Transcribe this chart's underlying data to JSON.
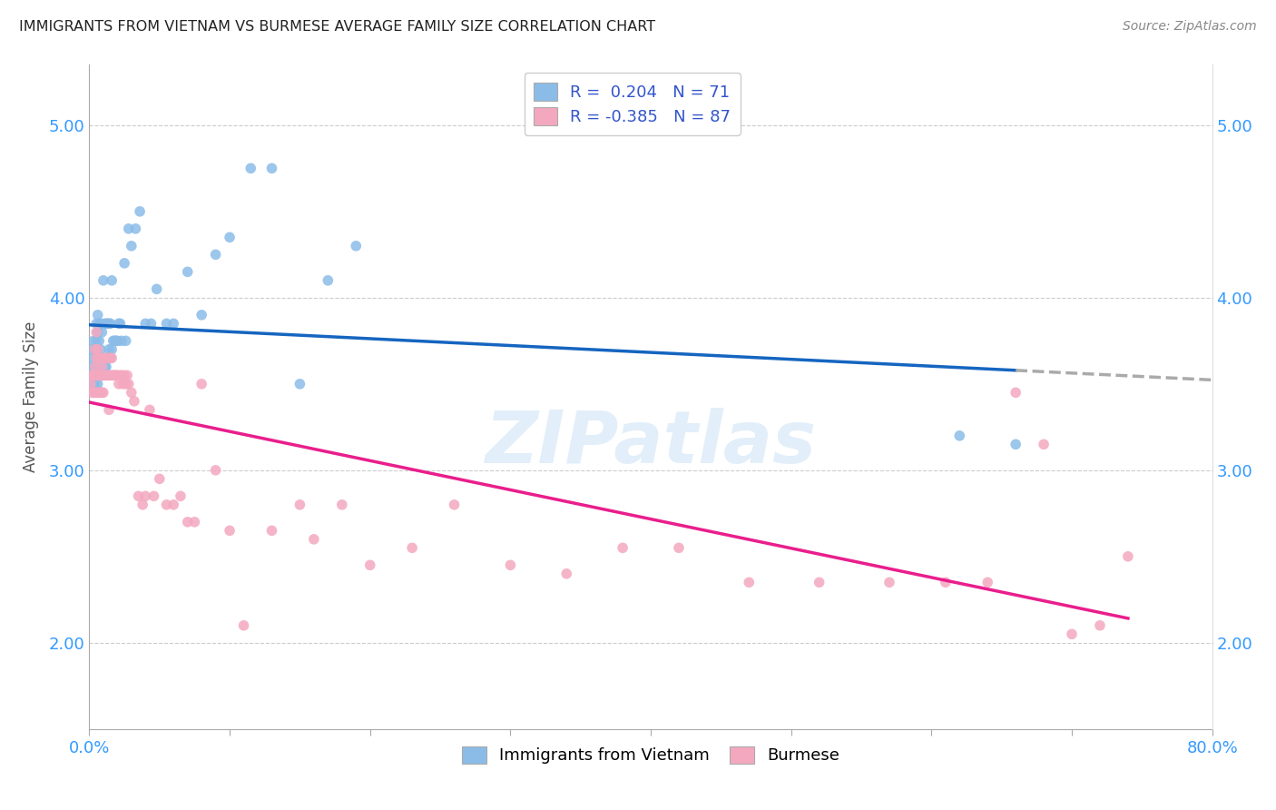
{
  "title": "IMMIGRANTS FROM VIETNAM VS BURMESE AVERAGE FAMILY SIZE CORRELATION CHART",
  "source": "Source: ZipAtlas.com",
  "ylabel": "Average Family Size",
  "yticks": [
    2.0,
    3.0,
    4.0,
    5.0
  ],
  "xlim": [
    0.0,
    0.8
  ],
  "ylim": [
    1.5,
    5.35
  ],
  "legend_labels": [
    "Immigrants from Vietnam",
    "Burmese"
  ],
  "R_vietnam": 0.204,
  "N_vietnam": 71,
  "R_burmese": -0.385,
  "N_burmese": 87,
  "color_vietnam": "#8bbce8",
  "color_burmese": "#f4a8c0",
  "line_color_vietnam": "#1565c0",
  "line_color_burmese": "#e91e8c",
  "line_color_vietnam_dash": "#aaaaaa",
  "watermark": "ZIPatlas",
  "vietnam_x": [
    0.001,
    0.002,
    0.002,
    0.003,
    0.003,
    0.003,
    0.004,
    0.004,
    0.004,
    0.005,
    0.005,
    0.005,
    0.005,
    0.006,
    0.006,
    0.006,
    0.006,
    0.006,
    0.007,
    0.007,
    0.007,
    0.007,
    0.008,
    0.008,
    0.008,
    0.009,
    0.009,
    0.01,
    0.01,
    0.01,
    0.011,
    0.011,
    0.012,
    0.012,
    0.013,
    0.013,
    0.014,
    0.014,
    0.015,
    0.015,
    0.016,
    0.016,
    0.017,
    0.018,
    0.019,
    0.02,
    0.021,
    0.022,
    0.023,
    0.025,
    0.026,
    0.028,
    0.03,
    0.033,
    0.036,
    0.04,
    0.044,
    0.048,
    0.055,
    0.06,
    0.07,
    0.08,
    0.09,
    0.1,
    0.115,
    0.13,
    0.15,
    0.17,
    0.19,
    0.62,
    0.66
  ],
  "vietnam_y": [
    3.6,
    3.55,
    3.7,
    3.5,
    3.65,
    3.75,
    3.5,
    3.6,
    3.7,
    3.55,
    3.65,
    3.75,
    3.85,
    3.5,
    3.6,
    3.7,
    3.8,
    3.9,
    3.55,
    3.65,
    3.75,
    3.85,
    3.55,
    3.7,
    3.85,
    3.55,
    3.8,
    3.55,
    3.65,
    4.1,
    3.6,
    3.85,
    3.6,
    3.85,
    3.65,
    3.85,
    3.7,
    3.85,
    3.65,
    3.85,
    3.7,
    4.1,
    3.75,
    3.75,
    3.75,
    3.75,
    3.85,
    3.85,
    3.75,
    4.2,
    3.75,
    4.4,
    4.3,
    4.4,
    4.5,
    3.85,
    3.85,
    4.05,
    3.85,
    3.85,
    4.15,
    3.9,
    4.25,
    4.35,
    4.75,
    4.75,
    3.5,
    4.1,
    4.3,
    3.2,
    3.15
  ],
  "burmese_x": [
    0.001,
    0.002,
    0.002,
    0.003,
    0.003,
    0.004,
    0.004,
    0.004,
    0.004,
    0.005,
    0.005,
    0.005,
    0.005,
    0.006,
    0.006,
    0.006,
    0.007,
    0.007,
    0.007,
    0.008,
    0.008,
    0.008,
    0.009,
    0.009,
    0.01,
    0.01,
    0.011,
    0.011,
    0.012,
    0.012,
    0.013,
    0.013,
    0.014,
    0.015,
    0.015,
    0.016,
    0.016,
    0.017,
    0.018,
    0.019,
    0.02,
    0.021,
    0.022,
    0.023,
    0.024,
    0.025,
    0.026,
    0.027,
    0.028,
    0.03,
    0.032,
    0.035,
    0.038,
    0.04,
    0.043,
    0.046,
    0.05,
    0.055,
    0.06,
    0.065,
    0.07,
    0.075,
    0.08,
    0.09,
    0.1,
    0.11,
    0.13,
    0.15,
    0.16,
    0.18,
    0.2,
    0.23,
    0.26,
    0.3,
    0.34,
    0.38,
    0.42,
    0.47,
    0.52,
    0.57,
    0.61,
    0.64,
    0.66,
    0.68,
    0.7,
    0.72,
    0.74
  ],
  "burmese_y": [
    3.5,
    3.45,
    3.55,
    3.45,
    3.55,
    3.45,
    3.55,
    3.6,
    3.7,
    3.45,
    3.55,
    3.65,
    3.8,
    3.45,
    3.55,
    3.7,
    3.45,
    3.55,
    3.65,
    3.45,
    3.55,
    3.65,
    3.45,
    3.6,
    3.45,
    3.55,
    3.55,
    3.65,
    3.55,
    3.65,
    3.55,
    3.65,
    3.35,
    3.55,
    3.65,
    3.55,
    3.65,
    3.55,
    3.55,
    3.55,
    3.55,
    3.5,
    3.55,
    3.55,
    3.5,
    3.55,
    3.5,
    3.55,
    3.5,
    3.45,
    3.4,
    2.85,
    2.8,
    2.85,
    3.35,
    2.85,
    2.95,
    2.8,
    2.8,
    2.85,
    2.7,
    2.7,
    3.5,
    3.0,
    2.65,
    2.1,
    2.65,
    2.8,
    2.6,
    2.8,
    2.45,
    2.55,
    2.8,
    2.45,
    2.4,
    2.55,
    2.55,
    2.35,
    2.35,
    2.35,
    2.35,
    2.35,
    3.45,
    3.15,
    2.05,
    2.1,
    2.5
  ]
}
